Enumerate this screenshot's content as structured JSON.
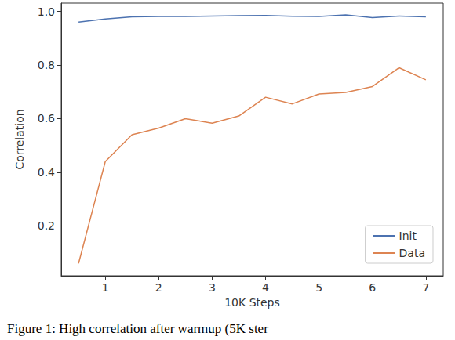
{
  "chart_data": {
    "type": "line",
    "title": "Figure 1: High correlation after warmup (5K ster",
    "x_label": "10K Steps",
    "y_label": "Correlation",
    "x": [
      0.5,
      1,
      1.5,
      2,
      2.5,
      3,
      3.5,
      4,
      4.5,
      5,
      5.5,
      6,
      6.5,
      7
    ],
    "series": [
      {
        "name": "Init",
        "color": "#4c72b0",
        "values": [
          0.96,
          0.972,
          0.98,
          0.981,
          0.981,
          0.983,
          0.984,
          0.985,
          0.982,
          0.981,
          0.987,
          0.977,
          0.983,
          0.98
        ]
      },
      {
        "name": "Data",
        "color": "#dd8452",
        "values": [
          0.06,
          0.44,
          0.54,
          0.565,
          0.6,
          0.583,
          0.61,
          0.68,
          0.655,
          0.692,
          0.698,
          0.72,
          0.79,
          0.745
        ]
      }
    ],
    "xlim": [
      0.175,
      7.325
    ],
    "xticks": [
      1,
      2,
      3,
      4,
      5,
      6,
      7
    ],
    "ylim": [
      0.014,
      1.031
    ],
    "yticks": [
      0.2,
      0.4,
      0.6,
      0.8,
      {
        "value": 1,
        "label": "1.0"
      }
    ],
    "grid": false,
    "legend": "lower right"
  }
}
